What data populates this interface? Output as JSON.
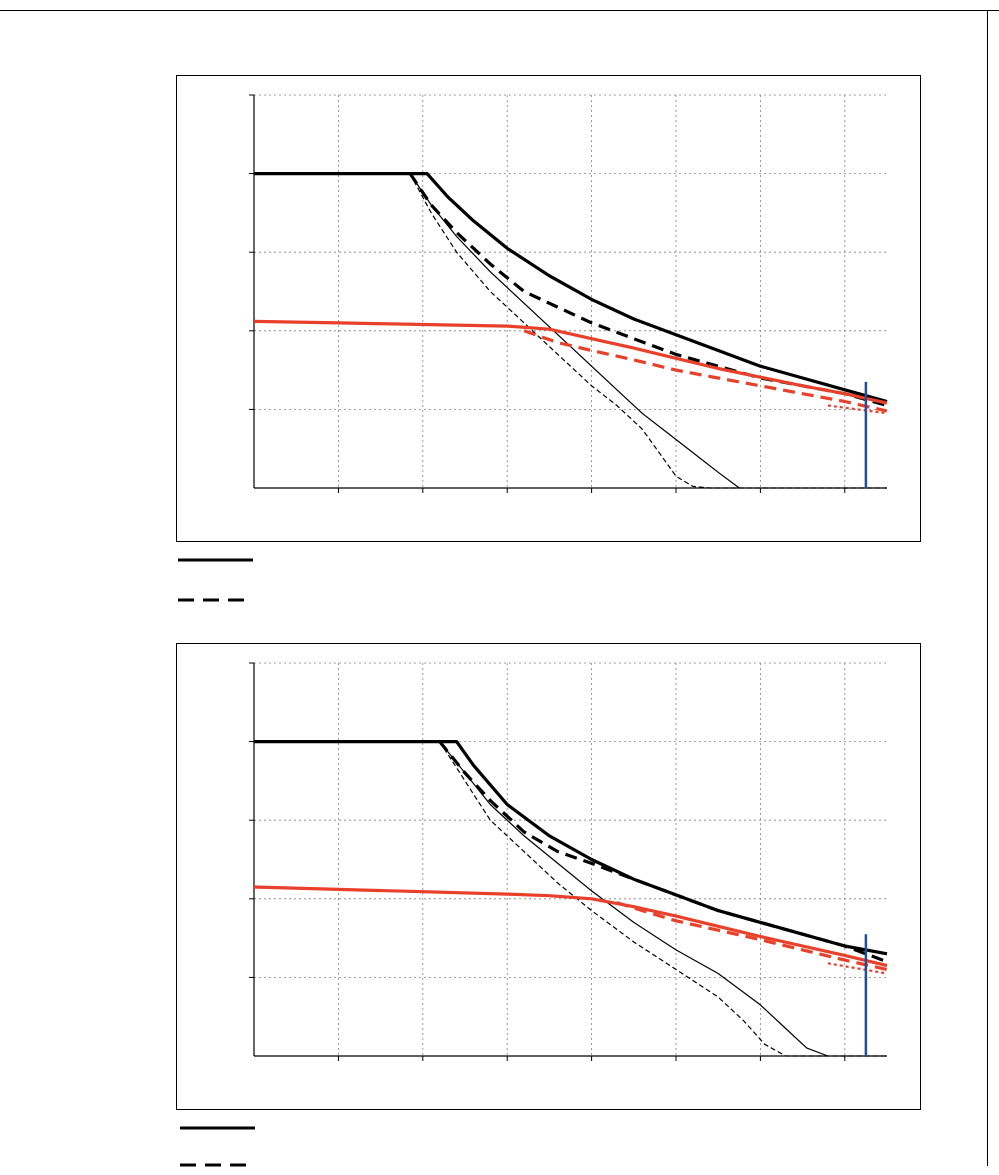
{
  "colors": {
    "black": "#000000",
    "red": "#e8402b",
    "blue": "#1f4e9a",
    "grid": "#808080"
  },
  "chart_data": [
    {
      "type": "line",
      "title": "",
      "xlabel": "",
      "ylabel": "",
      "xlim": [
        0,
        7.5
      ],
      "ylim": [
        0,
        5
      ],
      "grid": true,
      "series": [
        {
          "style": "thick-solid",
          "color": "black",
          "x": [
            0,
            2.05,
            2.3,
            2.6,
            3,
            3.5,
            4,
            4.5,
            5,
            5.5,
            6,
            6.5,
            7,
            7.5
          ],
          "y": [
            4,
            4,
            3.7,
            3.4,
            3.05,
            2.7,
            2.4,
            2.15,
            1.95,
            1.75,
            1.55,
            1.4,
            1.25,
            1.1
          ]
        },
        {
          "style": "thick-dash",
          "color": "black",
          "x": [
            1.85,
            2.1,
            2.4,
            2.8,
            3.2,
            3.6,
            4,
            4.5,
            5,
            5.5,
            6,
            6.5,
            7,
            7.5
          ],
          "y": [
            4,
            3.6,
            3.25,
            2.85,
            2.5,
            2.3,
            2.1,
            1.9,
            1.7,
            1.55,
            1.4,
            1.3,
            1.2,
            1.05
          ]
        },
        {
          "style": "thin-solid",
          "color": "black",
          "x": [
            1.85,
            2.1,
            2.4,
            2.8,
            3.2,
            3.6,
            4,
            4.3,
            4.6,
            4.9,
            5.2,
            5.5,
            5.75
          ],
          "y": [
            4,
            3.6,
            3.2,
            2.75,
            2.35,
            1.95,
            1.55,
            1.25,
            0.95,
            0.7,
            0.45,
            0.2,
            0
          ]
        },
        {
          "style": "thin-dash",
          "color": "black",
          "x": [
            1.85,
            2.1,
            2.4,
            2.8,
            3.2,
            3.6,
            4,
            4.3,
            4.6,
            4.8,
            5,
            5.2,
            5.4,
            7.5
          ],
          "y": [
            4,
            3.5,
            3.0,
            2.5,
            2.1,
            1.7,
            1.3,
            1.05,
            0.75,
            0.45,
            0.15,
            0.02,
            0,
            0
          ]
        },
        {
          "style": "thick-solid",
          "color": "red",
          "x": [
            0,
            1,
            2,
            3,
            3.5,
            4,
            4.5,
            5,
            5.5,
            6,
            6.5,
            7,
            7.5
          ],
          "y": [
            2.12,
            2.1,
            2.08,
            2.06,
            2.02,
            1.9,
            1.78,
            1.65,
            1.52,
            1.41,
            1.3,
            1.2,
            1.08
          ]
        },
        {
          "style": "thick-dash",
          "color": "red",
          "x": [
            3.2,
            3.6,
            4,
            4.5,
            5,
            5.5,
            6,
            6.5,
            7,
            7.5
          ],
          "y": [
            2.0,
            1.85,
            1.75,
            1.63,
            1.5,
            1.4,
            1.3,
            1.2,
            1.1,
            0.98
          ]
        },
        {
          "style": "dotted",
          "color": "red",
          "x": [
            6.8,
            7.5
          ],
          "y": [
            1.05,
            0.95
          ]
        },
        {
          "style": "vline",
          "color": "blue",
          "x": [
            7.25,
            7.25
          ],
          "y": [
            0,
            1.35
          ]
        }
      ]
    },
    {
      "type": "line",
      "title": "",
      "xlabel": "",
      "ylabel": "",
      "xlim": [
        0,
        7.5
      ],
      "ylim": [
        0,
        5
      ],
      "grid": true,
      "series": [
        {
          "style": "thick-solid",
          "color": "black",
          "x": [
            0,
            2.4,
            2.6,
            3,
            3.5,
            4,
            4.5,
            5,
            5.5,
            6,
            6.5,
            7,
            7.5
          ],
          "y": [
            4,
            4,
            3.7,
            3.2,
            2.8,
            2.5,
            2.25,
            2.05,
            1.85,
            1.7,
            1.55,
            1.4,
            1.3
          ]
        },
        {
          "style": "thick-dash",
          "color": "black",
          "x": [
            2.2,
            2.5,
            2.8,
            3.2,
            3.6,
            4,
            4.5,
            5,
            5.5,
            6,
            6.5,
            7,
            7.5
          ],
          "y": [
            4,
            3.6,
            3.25,
            2.85,
            2.6,
            2.45,
            2.25,
            2.05,
            1.85,
            1.7,
            1.55,
            1.4,
            1.2
          ]
        },
        {
          "style": "thin-solid",
          "color": "black",
          "x": [
            2.2,
            2.5,
            2.8,
            3.2,
            3.6,
            4,
            4.5,
            5,
            5.5,
            6,
            6.3,
            6.55,
            6.8
          ],
          "y": [
            4,
            3.6,
            3.2,
            2.8,
            2.45,
            2.1,
            1.7,
            1.35,
            1.05,
            0.65,
            0.35,
            0.1,
            0
          ]
        },
        {
          "style": "thin-dash",
          "color": "black",
          "x": [
            2.2,
            2.5,
            2.8,
            3.2,
            3.6,
            4,
            4.5,
            5,
            5.5,
            5.8,
            6.05,
            6.3,
            7.5
          ],
          "y": [
            4,
            3.5,
            3.0,
            2.6,
            2.2,
            1.85,
            1.45,
            1.1,
            0.75,
            0.45,
            0.15,
            0,
            0
          ]
        },
        {
          "style": "thick-solid",
          "color": "red",
          "x": [
            0,
            1,
            2,
            3,
            3.5,
            4,
            4.5,
            5,
            5.5,
            6,
            6.5,
            7,
            7.5
          ],
          "y": [
            2.15,
            2.12,
            2.09,
            2.06,
            2.04,
            2.0,
            1.9,
            1.78,
            1.65,
            1.52,
            1.4,
            1.28,
            1.15
          ]
        },
        {
          "style": "thick-dash",
          "color": "red",
          "x": [
            4.3,
            4.6,
            5,
            5.5,
            6,
            6.5,
            7,
            7.5
          ],
          "y": [
            1.95,
            1.85,
            1.72,
            1.6,
            1.48,
            1.35,
            1.22,
            1.1
          ]
        },
        {
          "style": "dotted",
          "color": "red",
          "x": [
            6.8,
            7.5
          ],
          "y": [
            1.18,
            1.05
          ]
        },
        {
          "style": "vline",
          "color": "blue",
          "x": [
            7.25,
            7.25
          ],
          "y": [
            0,
            1.55
          ]
        }
      ]
    }
  ],
  "legends": [
    [
      {
        "style": "solid"
      },
      {
        "style": "dash"
      }
    ],
    [
      {
        "style": "solid"
      },
      {
        "style": "dash"
      }
    ]
  ]
}
